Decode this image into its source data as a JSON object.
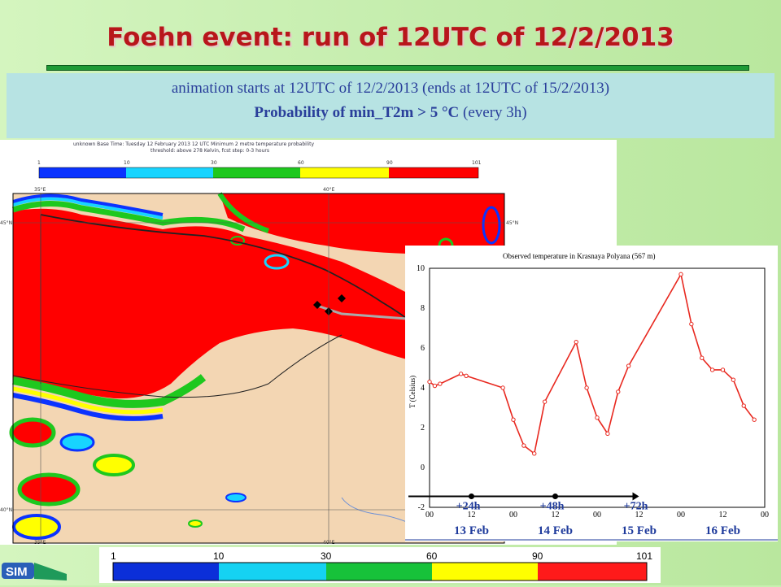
{
  "header": {
    "title": "Foehn event: run of 12UTC of 12/2/2013",
    "subtitle_line1": "animation starts at 12UTC of  12/2/2013 (ends at 12UTC of 15/2/2013)",
    "subtitle_line2_bold": "Probability of min_T2m > 5 °C",
    "subtitle_line2_tail": " (every 3h)"
  },
  "map": {
    "header_line1": "unknown  Base Time: Tuesday 12 February 2013 12 UTC  Minimum 2 metre temperature probability",
    "header_line2": "threshold: above 278 Kelvin,  fcst step: 0-3 hours",
    "small_scale_labels": [
      "1",
      "10",
      "30",
      "60",
      "90",
      "101"
    ],
    "lon_labels": [
      "35°E",
      "40°E"
    ],
    "lat_labels": [
      "45°N",
      "40°N"
    ],
    "colors": {
      "land": "#f3d6b3",
      "high_prob": "#ff0000",
      "bin_1_10": "#0b33ff",
      "bin_10_30": "#17d4ff",
      "bin_30_60": "#1ec81e",
      "bin_60_90": "#ffff00",
      "bin_90_101": "#ff0000"
    }
  },
  "colorbar": {
    "labels": [
      "1",
      "10",
      "30",
      "60",
      "90",
      "101"
    ],
    "colors": [
      "#0b2fd9",
      "#15d2f2",
      "#17c23a",
      "#ffff00",
      "#ff1a1a"
    ]
  },
  "logo_text": "SIM",
  "chart_data": {
    "type": "line",
    "title": "Observed temperature in Krasnaya Polyana (567 m)",
    "ylabel": "T (Celsius)",
    "xlabel": "",
    "ylim": [
      -2,
      10
    ],
    "yticks": [
      -2,
      0,
      2,
      4,
      6,
      8,
      10
    ],
    "xlim": [
      0,
      96
    ],
    "xticks": [
      0,
      12,
      24,
      36,
      48,
      60,
      72,
      84,
      96
    ],
    "xtick_labels": [
      "00",
      "12",
      "00",
      "12",
      "00",
      "12",
      "00",
      "12",
      "00"
    ],
    "day_labels": [
      "13 Feb",
      "14 Feb",
      "15 Feb",
      "16 Feb"
    ],
    "lead_labels": [
      "+24h",
      "+48h",
      "+72h"
    ],
    "series": [
      {
        "color": "#e8281f",
        "x": [
          0,
          1.5,
          3,
          9,
          10.5,
          21,
          24,
          27,
          30,
          33,
          42,
          45,
          48,
          51,
          54,
          57,
          72,
          75,
          78,
          81,
          84,
          87,
          90,
          93
        ],
        "y": [
          4.3,
          4.1,
          4.2,
          4.7,
          4.6,
          4.0,
          2.4,
          1.1,
          0.7,
          3.3,
          6.3,
          4.0,
          2.5,
          1.7,
          3.8,
          5.1,
          9.7,
          7.2,
          5.5,
          4.9,
          4.9,
          4.4,
          3.1,
          2.4
        ]
      }
    ],
    "reference_line": 0,
    "grid": true
  }
}
